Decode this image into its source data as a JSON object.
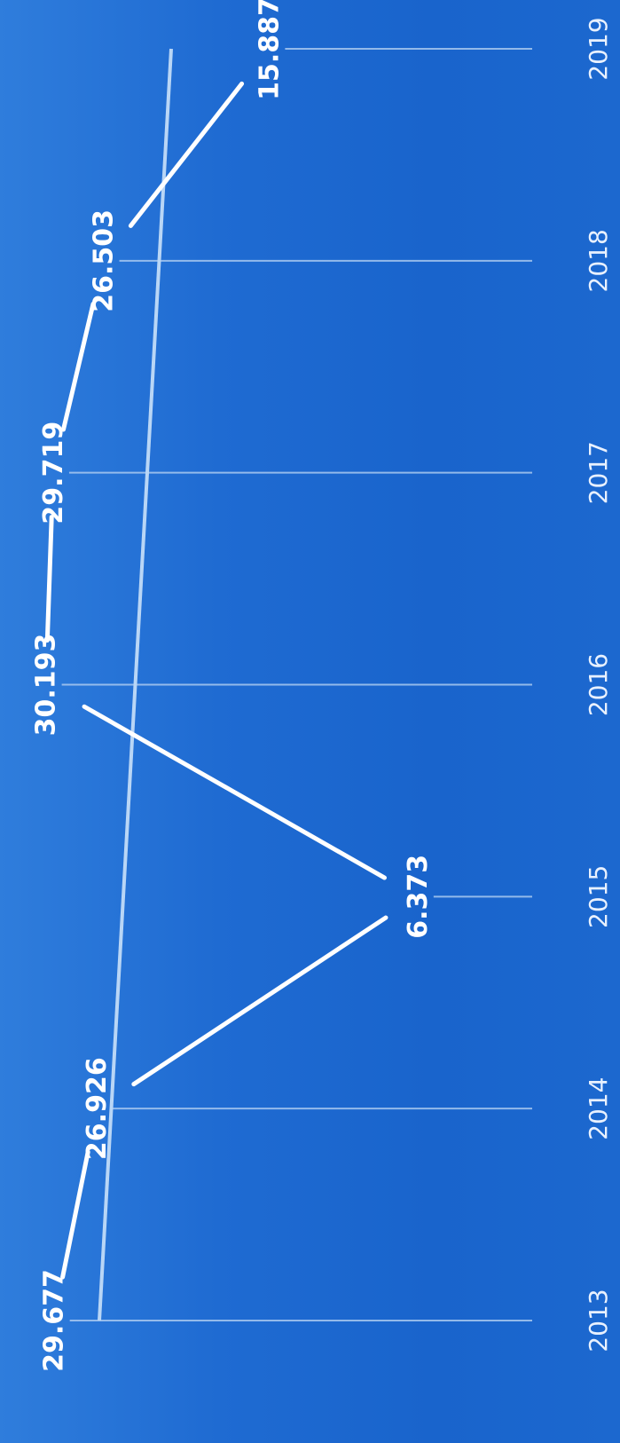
{
  "chart_data": {
    "type": "line",
    "x": [
      "2013",
      "2014",
      "2015",
      "2016",
      "2017",
      "2018",
      "2019"
    ],
    "values": [
      29.677,
      26.926,
      6.373,
      30.193,
      29.719,
      26.503,
      15.887
    ],
    "value_labels": [
      "29.677",
      "26.926",
      "6.373",
      "30.193",
      "29.719",
      "26.503",
      "15.887"
    ],
    "title": "",
    "xlabel": "",
    "ylabel": "",
    "ylim": [
      0,
      31
    ],
    "grid": true,
    "trendline": true,
    "orientation": "rotated-90-clockwise",
    "colors": {
      "background": "#1f6bd2",
      "line": "#ffffff",
      "gridline": "#a9c9f0",
      "trendline": "#b9d6f6"
    }
  }
}
